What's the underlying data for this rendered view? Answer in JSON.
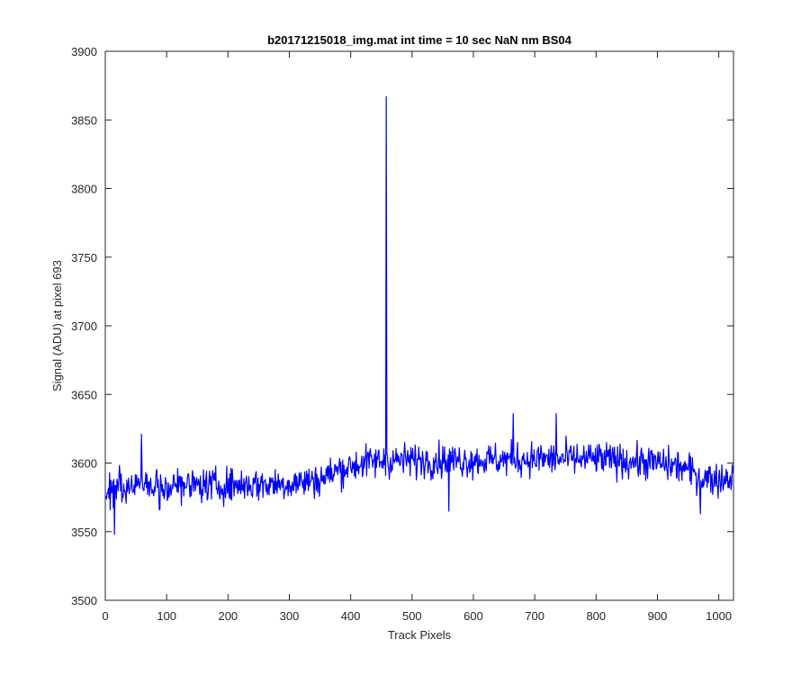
{
  "chart_data": {
    "type": "line",
    "title": "b20171215018_img.mat int time = 10 sec  NaN nm BS04",
    "xlabel": "Track Pixels",
    "ylabel": "Signal (ADU) at pixel 693",
    "xlim": [
      0,
      1024
    ],
    "ylim": [
      3500,
      3900
    ],
    "xticks": [
      0,
      100,
      200,
      300,
      400,
      500,
      600,
      700,
      800,
      900,
      1000
    ],
    "yticks": [
      3500,
      3550,
      3600,
      3650,
      3700,
      3750,
      3800,
      3850,
      3900
    ],
    "grid": false,
    "line_color": "#0000ff",
    "series": [
      {
        "trend": {
          "x": [
            0,
            50,
            100,
            200,
            300,
            350,
            380,
            420,
            455,
            500,
            600,
            700,
            800,
            900,
            940,
            970,
            1000,
            1024
          ],
          "y": [
            3578,
            3585,
            3583,
            3584,
            3585,
            3588,
            3595,
            3600,
            3602,
            3602,
            3602,
            3603,
            3603,
            3600,
            3597,
            3590,
            3588,
            3590
          ]
        },
        "noise_amplitude": 10,
        "spikes": [
          {
            "x": 458,
            "y": 3867
          },
          {
            "x": 15,
            "y": 3548
          },
          {
            "x": 59,
            "y": 3621
          },
          {
            "x": 665,
            "y": 3636
          },
          {
            "x": 735,
            "y": 3636
          },
          {
            "x": 560,
            "y": 3565
          },
          {
            "x": 970,
            "y": 3563
          }
        ]
      }
    ]
  }
}
